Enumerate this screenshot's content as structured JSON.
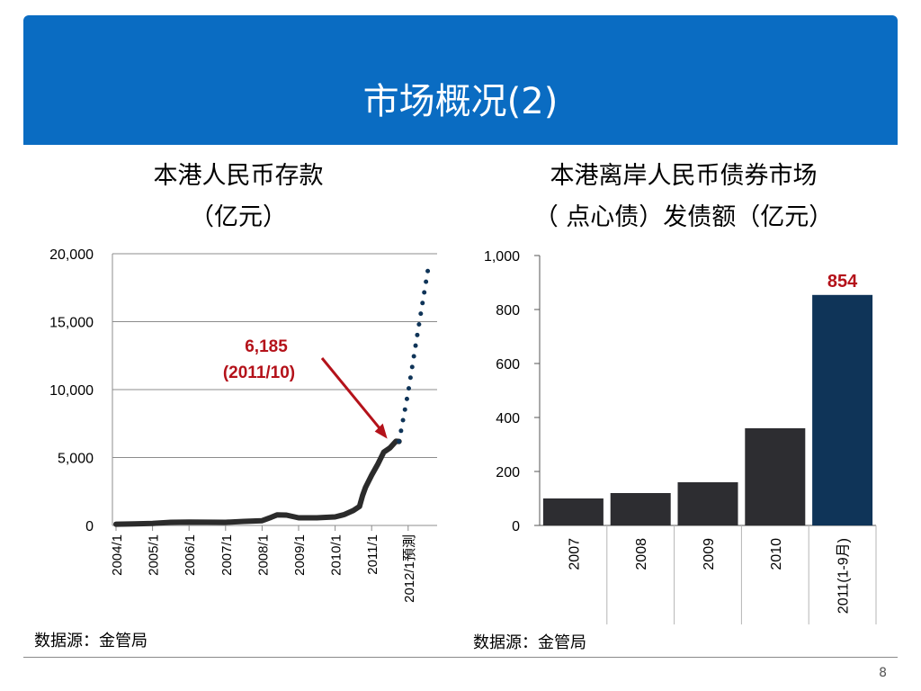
{
  "slide": {
    "title": "市场概况(2)",
    "page_number": "8"
  },
  "left_chart": {
    "title_line1": "本港人民币存款",
    "title_line2": "（亿元）",
    "source": "数据源：金管局",
    "annotation_value": "6,185",
    "annotation_date": "(2011/10)"
  },
  "right_chart": {
    "title_line1": "本港离岸人民币债券市场",
    "title_line2": "（ 点心债）发债额（亿元）",
    "source": "数据源：金管局"
  },
  "colors": {
    "banner": "#0a6cc2",
    "deposit_line": "#2b2b2b",
    "forecast_dots": "#0f3458",
    "annotation": "#b4121a",
    "bar_dark": "#2d2d31",
    "bar_highlight": "#0f3458"
  },
  "chart_data": [
    {
      "type": "line",
      "title": "本港人民币存款（亿元）",
      "x_tick_labels": [
        "2004/1",
        "2005/1",
        "2006/1",
        "2007/1",
        "2008/1",
        "2009/1",
        "2010/1",
        "2011/1",
        "2012/1預測"
      ],
      "y_ticks": [
        0,
        5000,
        10000,
        15000,
        20000
      ],
      "y_tick_labels": [
        "0",
        "5,000",
        "10,000",
        "15,000",
        "20,000"
      ],
      "ylim": [
        0,
        20000
      ],
      "grid": true,
      "series": [
        {
          "style": "solid",
          "points": [
            [
              "2004/1",
              90
            ],
            [
              "2004/7",
              120
            ],
            [
              "2005/1",
              150
            ],
            [
              "2005/7",
              230
            ],
            [
              "2006/1",
              250
            ],
            [
              "2006/7",
              240
            ],
            [
              "2007/1",
              230
            ],
            [
              "2007/7",
              300
            ],
            [
              "2008/1",
              350
            ],
            [
              "2008/4",
              600
            ],
            [
              "2008/6",
              780
            ],
            [
              "2008/9",
              760
            ],
            [
              "2009/1",
              560
            ],
            [
              "2009/7",
              560
            ],
            [
              "2010/1",
              630
            ],
            [
              "2010/4",
              800
            ],
            [
              "2010/7",
              1100
            ],
            [
              "2010/9",
              1400
            ],
            [
              "2010/10",
              2200
            ],
            [
              "2010/11",
              2800
            ],
            [
              "2011/1",
              3700
            ],
            [
              "2011/3",
              4500
            ],
            [
              "2011/5",
              5400
            ],
            [
              "2011/7",
              5700
            ],
            [
              "2011/9",
              6200
            ],
            [
              "2011/10",
              6185
            ]
          ]
        },
        {
          "style": "dotted",
          "points": [
            [
              "2011/10",
              6185
            ],
            [
              "2012/1",
              9800
            ],
            [
              "2012/4",
              14000
            ],
            [
              "2012/8",
              19500
            ]
          ]
        }
      ],
      "annotation": {
        "text": "6,185",
        "date": "(2011/10)",
        "x": "2011/10",
        "y": 6185
      }
    },
    {
      "type": "bar",
      "title": "本港离岸人民币债券市场（ 点心债）发债额（亿元）",
      "categories": [
        "2007",
        "2008",
        "2009",
        "2010",
        "2011(1-9月)"
      ],
      "values": [
        100,
        120,
        160,
        360,
        854
      ],
      "y_ticks": [
        0,
        200,
        400,
        600,
        800,
        1000
      ],
      "y_tick_labels": [
        "0",
        "200",
        "400",
        "600",
        "800",
        "1,000"
      ],
      "ylim": [
        0,
        1000
      ],
      "grid": false,
      "data_labels": [
        {
          "category": "2011(1-9月)",
          "text": "854"
        }
      ]
    }
  ]
}
